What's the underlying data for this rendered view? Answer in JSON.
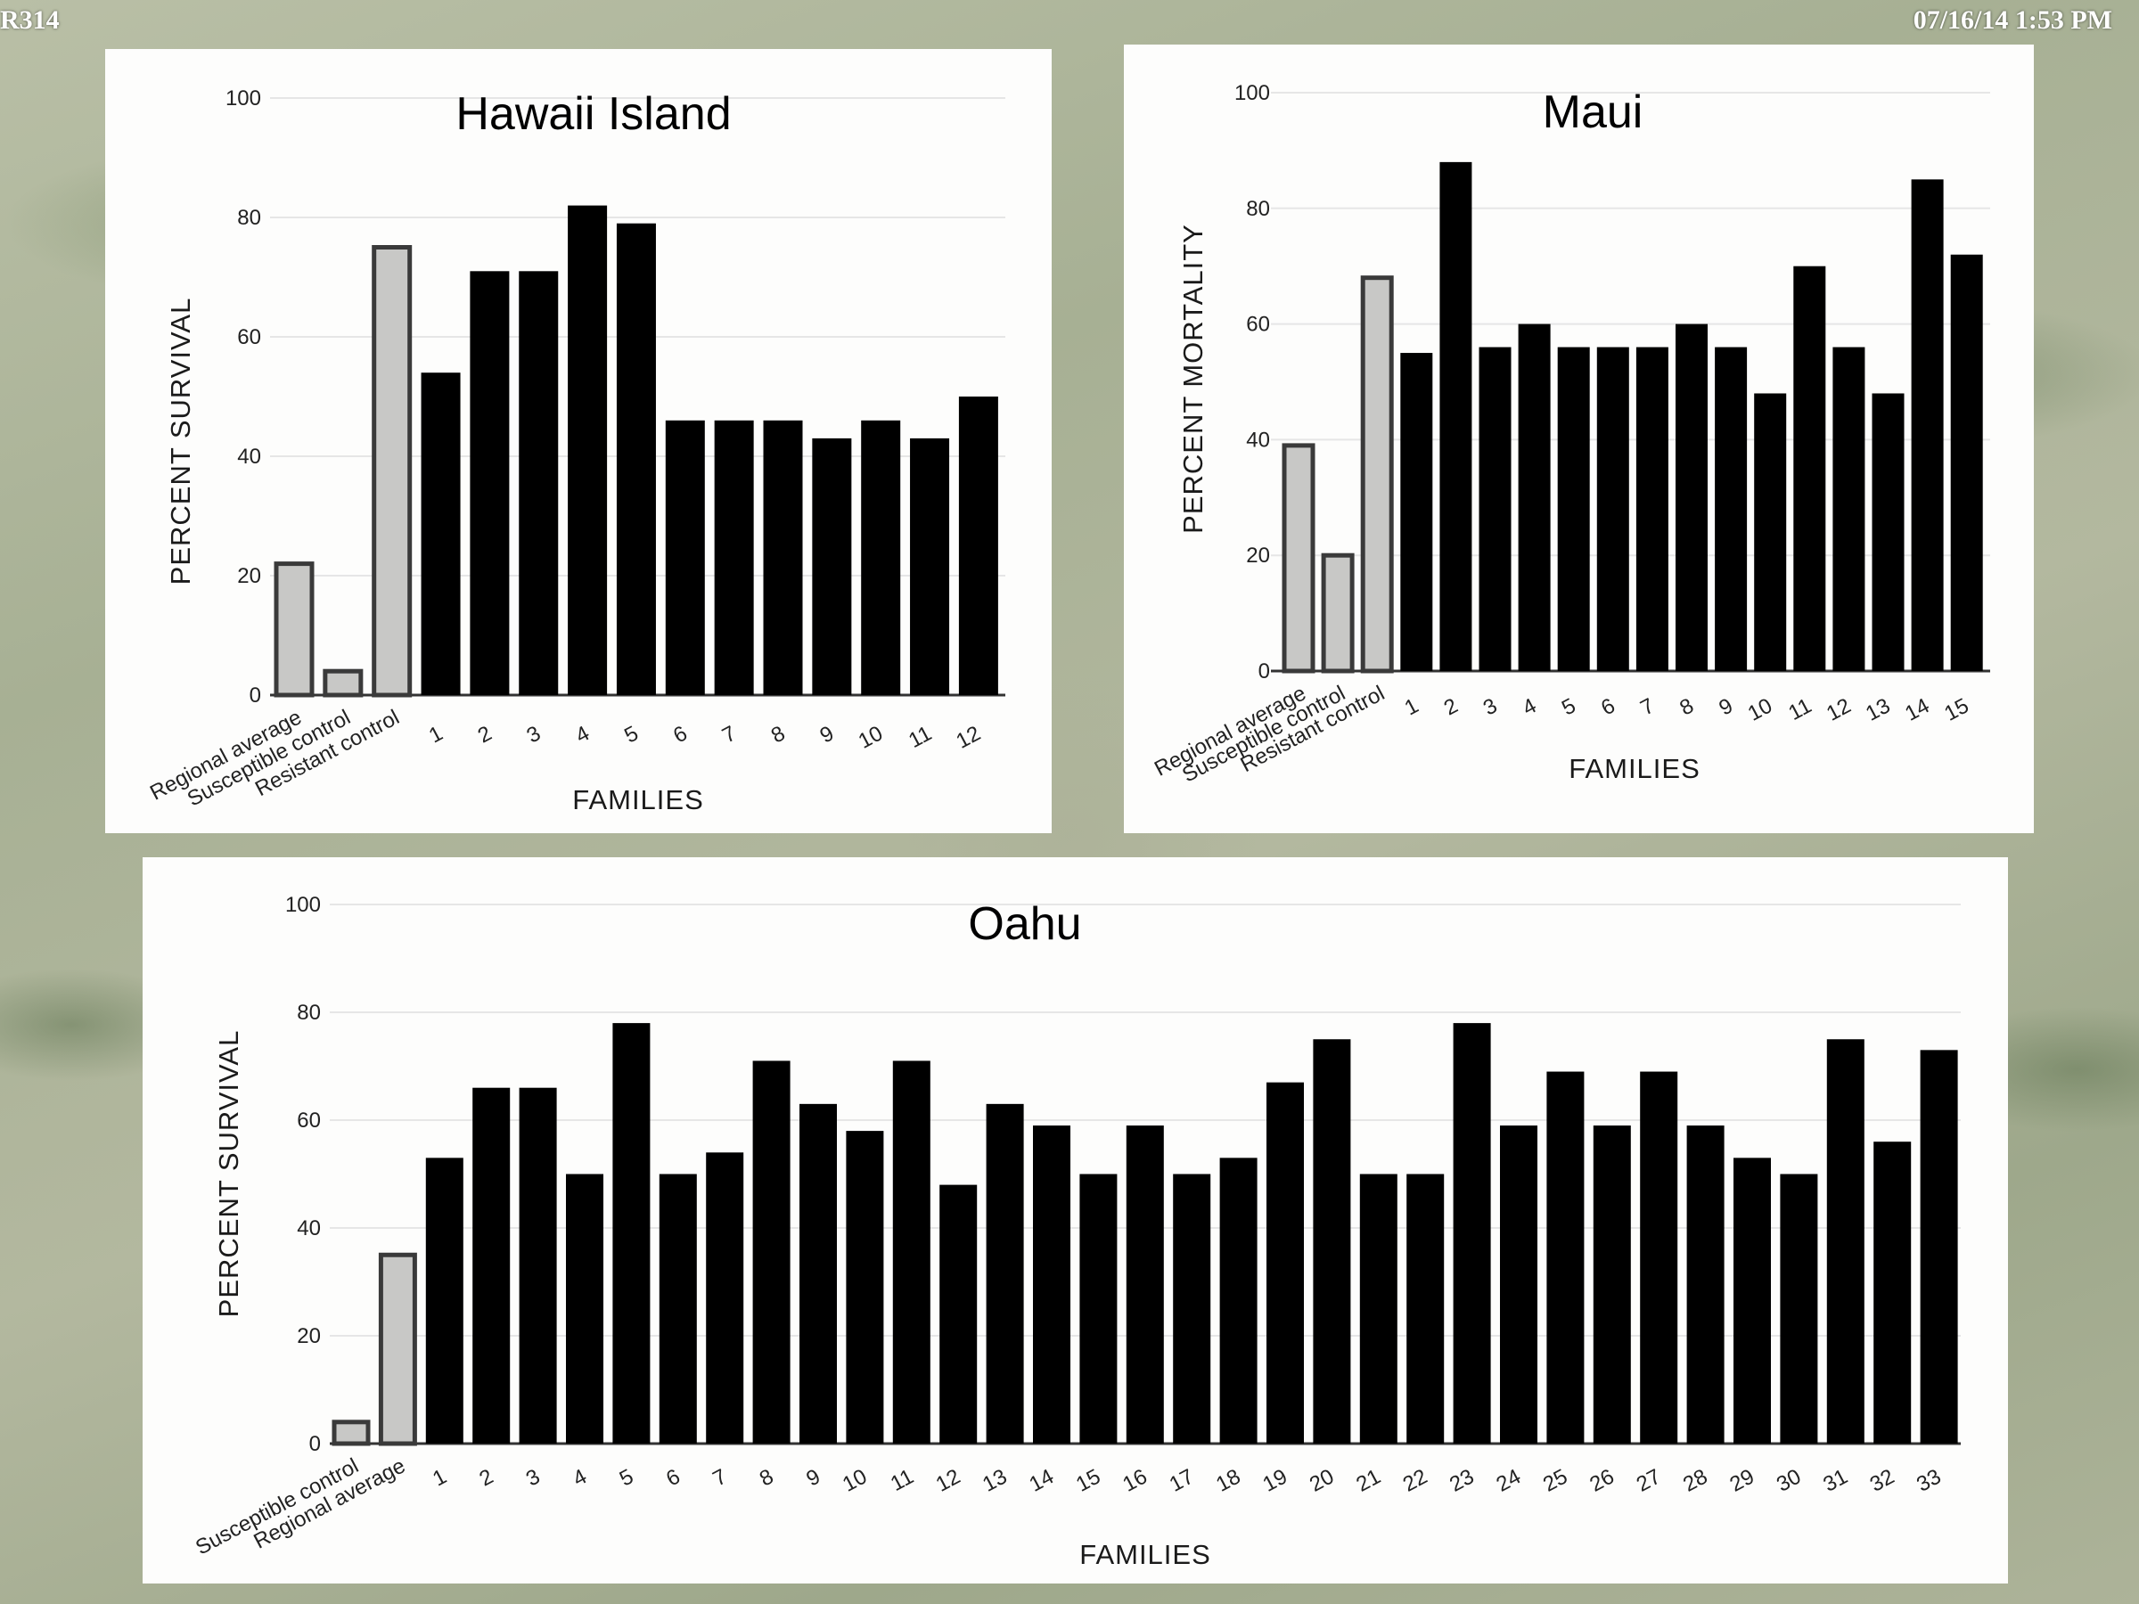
{
  "header": {
    "code": "R314",
    "datetime": "07/16/14 1:53 PM"
  },
  "colors": {
    "control_fill": "#c8c8c6",
    "control_stroke": "#3a3a3a",
    "family_fill": "#000000",
    "grid": "#e6e6e6",
    "panel_bg": "#fdfdfc"
  },
  "chart_data": [
    {
      "type": "bar",
      "title": "Hawaii Island",
      "xlabel": "FAMILIES",
      "ylabel": "PERCENT SURVIVAL",
      "ylim": [
        0,
        100
      ],
      "yticks": [
        0,
        20,
        40,
        60,
        80,
        100
      ],
      "grid": true,
      "categories": [
        "Regional average",
        "Susceptible control",
        "Resistant control",
        "1",
        "2",
        "3",
        "4",
        "5",
        "6",
        "7",
        "8",
        "9",
        "10",
        "11",
        "12"
      ],
      "values": [
        22,
        4,
        75,
        54,
        71,
        71,
        82,
        79,
        46,
        46,
        46,
        43,
        46,
        43,
        50
      ],
      "control_count": 3
    },
    {
      "type": "bar",
      "title": "Maui",
      "xlabel": "FAMILIES",
      "ylabel": "PERCENT MORTALITY",
      "ylim": [
        0,
        100
      ],
      "yticks": [
        0,
        20,
        40,
        60,
        80,
        100
      ],
      "grid": true,
      "categories": [
        "Regional average",
        "Susceptible control",
        "Resistant control",
        "1",
        "2",
        "3",
        "4",
        "5",
        "6",
        "7",
        "8",
        "9",
        "10",
        "11",
        "12",
        "13",
        "14",
        "15"
      ],
      "values": [
        39,
        20,
        68,
        55,
        88,
        56,
        60,
        56,
        56,
        56,
        60,
        56,
        48,
        70,
        56,
        48,
        85,
        72
      ],
      "control_count": 3
    },
    {
      "type": "bar",
      "title": "Oahu",
      "xlabel": "FAMILIES",
      "ylabel": "PERCENT SURVIVAL",
      "ylim": [
        0,
        100
      ],
      "yticks": [
        0,
        20,
        40,
        60,
        80,
        100
      ],
      "grid": true,
      "categories": [
        "Susceptible control",
        "Regional average",
        "1",
        "2",
        "3",
        "4",
        "5",
        "6",
        "7",
        "8",
        "9",
        "10",
        "11",
        "12",
        "13",
        "14",
        "15",
        "16",
        "17",
        "18",
        "19",
        "20",
        "21",
        "22",
        "23",
        "24",
        "25",
        "26",
        "27",
        "28",
        "29",
        "30",
        "31",
        "32",
        "33"
      ],
      "values": [
        4,
        35,
        53,
        66,
        66,
        50,
        78,
        50,
        54,
        71,
        63,
        58,
        71,
        48,
        63,
        59,
        50,
        59,
        50,
        53,
        67,
        75,
        50,
        50,
        78,
        59,
        69,
        59,
        69,
        59,
        53,
        50,
        75,
        56,
        73
      ],
      "control_count": 2
    }
  ]
}
